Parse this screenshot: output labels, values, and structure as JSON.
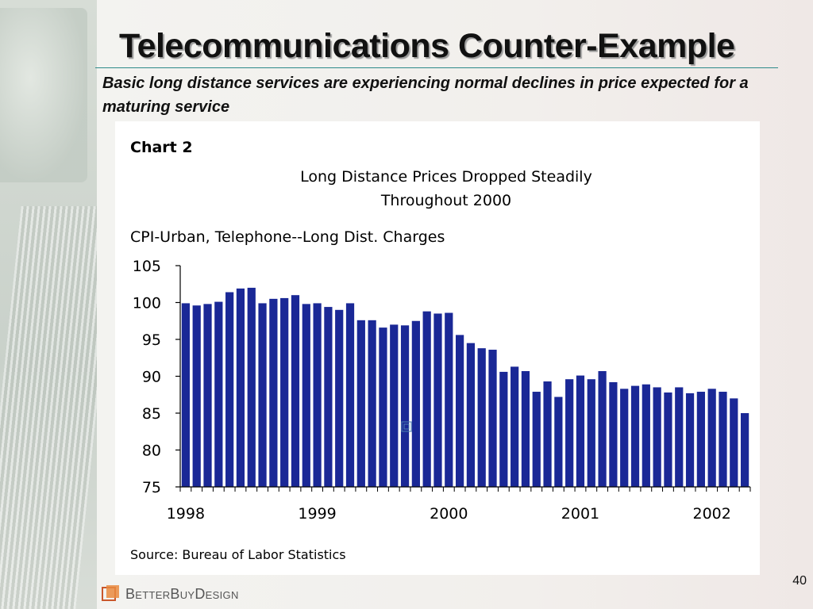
{
  "slide": {
    "title": "Telecommunications Counter-Example",
    "subtitle": "Basic long distance services are experiencing normal declines in price expected for a maturing service",
    "page_number": "40",
    "logo_text": "BetterBuyDesign",
    "accent_color": "#2d8a8a",
    "bar_color": "#1a2896"
  },
  "chart_data": {
    "type": "bar",
    "chart_label": "Chart 2",
    "title": "Long Distance Prices Dropped Steadily",
    "title_line2": "Throughout 2000",
    "ylabel": "CPI-Urban, Telephone--Long Dist. Charges",
    "source": "Source: Bureau of Labor Statistics",
    "ylim": [
      75,
      105
    ],
    "yticks": [
      75,
      80,
      85,
      90,
      95,
      100,
      105
    ],
    "xtick_labels": [
      "1998",
      "1999",
      "2000",
      "2001",
      "2002"
    ],
    "xtick_start_index": [
      0,
      12,
      24,
      36,
      48
    ],
    "values": [
      99.9,
      99.6,
      99.8,
      100.1,
      101.4,
      101.9,
      102.0,
      99.9,
      100.5,
      100.6,
      101.0,
      99.8,
      99.9,
      99.4,
      99.0,
      99.9,
      97.6,
      97.6,
      96.6,
      97.0,
      96.9,
      97.5,
      98.8,
      98.5,
      98.6,
      95.6,
      94.5,
      93.8,
      93.6,
      90.6,
      91.3,
      90.7,
      87.9,
      89.3,
      87.2,
      89.6,
      90.1,
      89.6,
      90.7,
      89.2,
      88.3,
      88.7,
      88.9,
      88.5,
      87.8,
      88.5,
      87.7,
      87.9,
      88.3,
      87.9,
      87.0,
      85.0
    ]
  }
}
